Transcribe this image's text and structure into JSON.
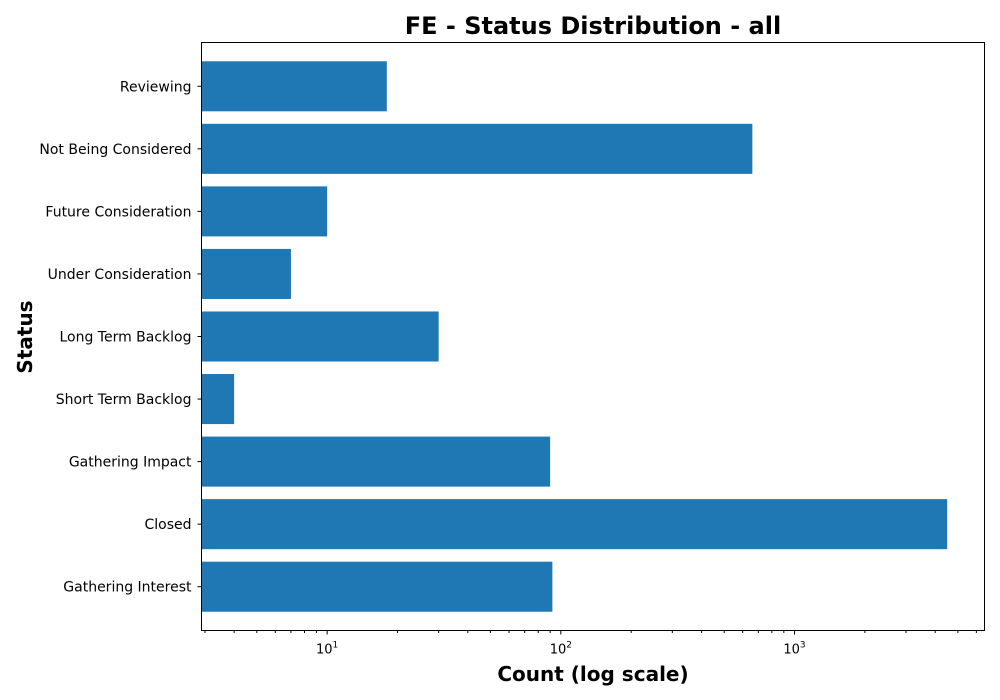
{
  "chart_data": {
    "type": "bar",
    "orientation": "horizontal",
    "title": "FE - Status Distribution - all",
    "xlabel": "Count (log scale)",
    "ylabel": "Status",
    "x_scale": "log",
    "xlim": [
      2.9,
      6500
    ],
    "x_ticks": [
      {
        "base": "10",
        "exp": "1",
        "value": 10
      },
      {
        "base": "10",
        "exp": "2",
        "value": 100
      },
      {
        "base": "10",
        "exp": "3",
        "value": 1000
      }
    ],
    "categories": [
      "Gathering Interest",
      "Closed",
      "Gathering Impact",
      "Short Term Backlog",
      "Long Term Backlog",
      "Under Consideration",
      "Future Consideration",
      "Not Being Considered",
      "Reviewing"
    ],
    "values": [
      92,
      4500,
      90,
      4,
      30,
      7,
      10,
      660,
      18
    ],
    "bar_color": "#1f77b4",
    "grid": false
  }
}
